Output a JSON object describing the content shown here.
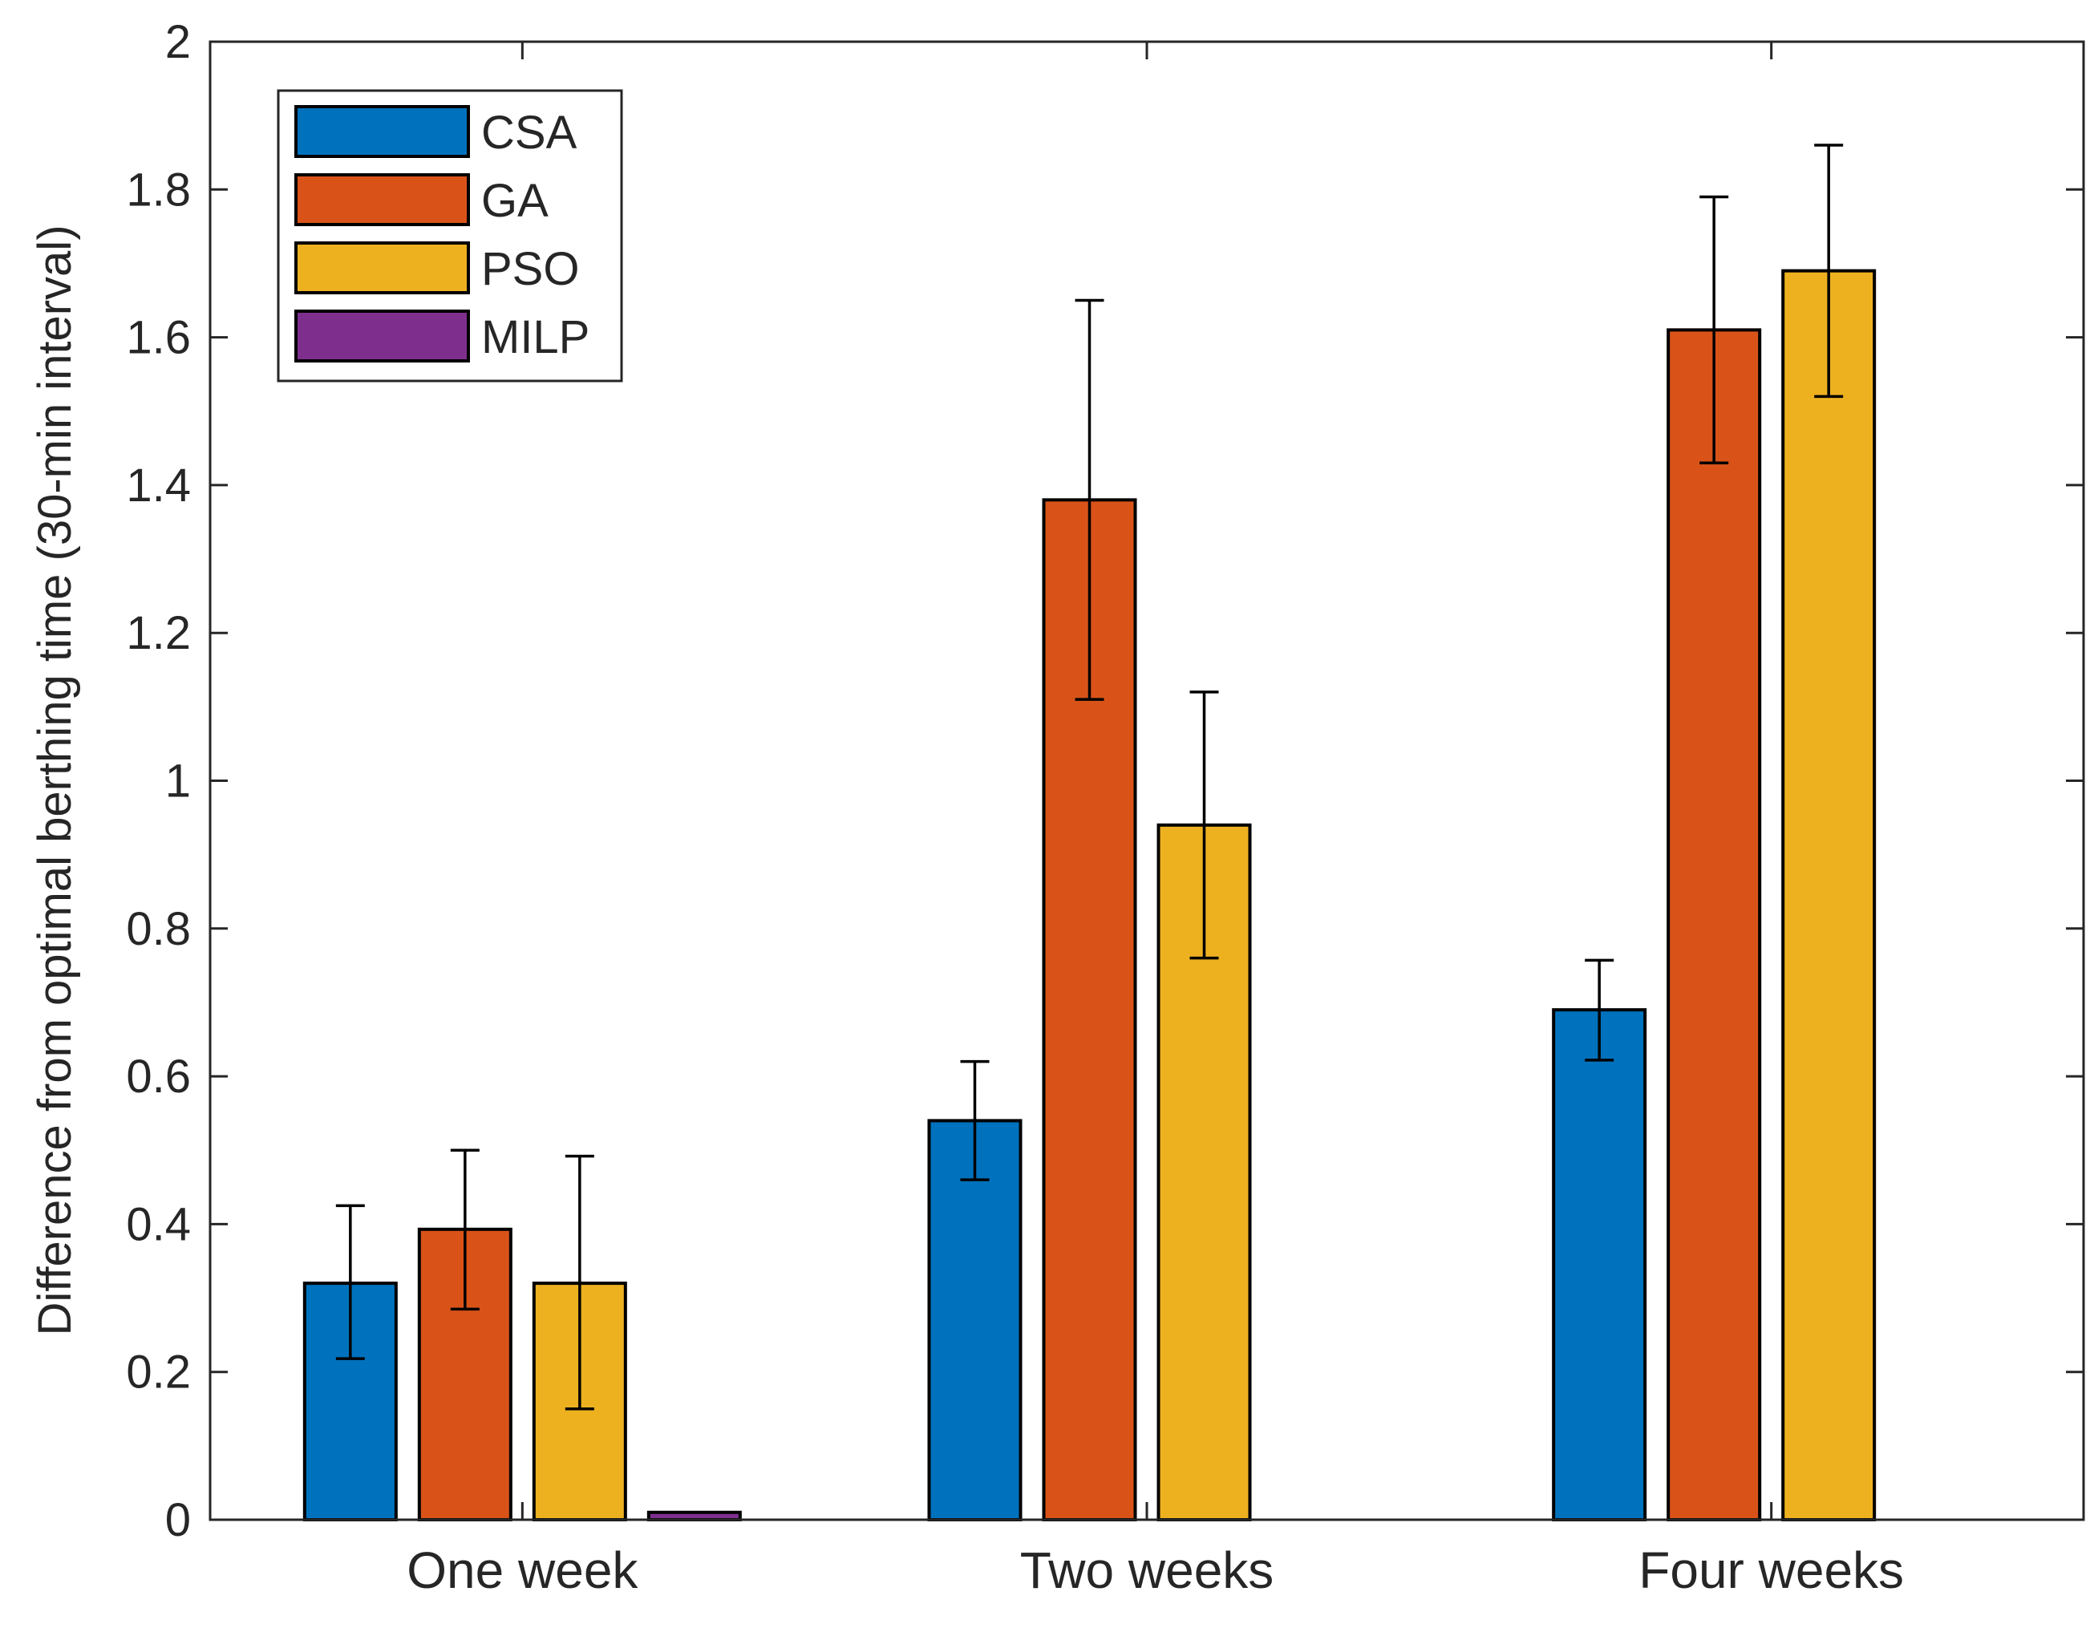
{
  "chart_data": {
    "type": "bar",
    "title": "",
    "xlabel": "",
    "ylabel": "Difference from optimal berthing time (30-min interval)",
    "ylim": [
      0,
      2
    ],
    "yticks": [
      0,
      0.2,
      0.4,
      0.6,
      0.8,
      1,
      1.2,
      1.4,
      1.6,
      1.8,
      2
    ],
    "ytick_labels": [
      "0",
      "0.2",
      "0.4",
      "0.6",
      "0.8",
      "1",
      "1.2",
      "1.4",
      "1.6",
      "1.8",
      "2"
    ],
    "grid": false,
    "legend_position": "top-left",
    "categories": [
      "One week",
      "Two weeks",
      "Four weeks"
    ],
    "series": [
      {
        "name": "CSA",
        "color": "#0072BD",
        "values": [
          0.32,
          0.54,
          0.69
        ],
        "err_low": [
          0.218,
          0.46,
          0.622
        ],
        "err_high": [
          0.425,
          0.62,
          0.757
        ]
      },
      {
        "name": "GA",
        "color": "#D95319",
        "values": [
          0.393,
          1.38,
          1.61
        ],
        "err_low": [
          0.285,
          1.11,
          1.43
        ],
        "err_high": [
          0.5,
          1.65,
          1.79
        ]
      },
      {
        "name": "PSO",
        "color": "#EDB120",
        "values": [
          0.32,
          0.94,
          1.69
        ],
        "err_low": [
          0.15,
          0.76,
          1.52
        ],
        "err_high": [
          0.492,
          1.12,
          1.86
        ]
      },
      {
        "name": "MILP",
        "color": "#7E2F8E",
        "values": [
          0.01,
          null,
          null
        ],
        "err_low": [
          null,
          null,
          null
        ],
        "err_high": [
          null,
          null,
          null
        ]
      }
    ]
  }
}
